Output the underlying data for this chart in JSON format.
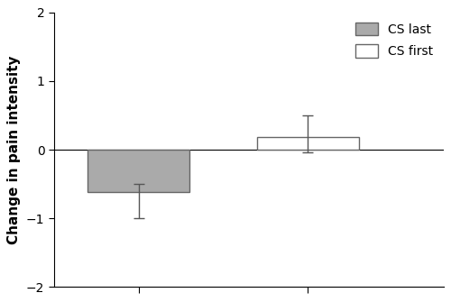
{
  "bar_positions": [
    1,
    2
  ],
  "bar_values": [
    -0.62,
    0.18
  ],
  "bar_colors": [
    "#aaaaaa",
    "#ffffff"
  ],
  "bar_edgecolors": [
    "#666666",
    "#666666"
  ],
  "bar_width": 0.6,
  "cs_last_err_lower": 0.38,
  "cs_last_err_upper": 0.12,
  "cs_first_err_lower": 0.22,
  "cs_first_err_upper": 0.32,
  "ylabel": "Change in pain intensity",
  "ylim": [
    -2,
    2
  ],
  "yticks": [
    -2,
    -1,
    0,
    1,
    2
  ],
  "legend_labels": [
    "CS last",
    "CS first"
  ],
  "legend_colors": [
    "#aaaaaa",
    "#ffffff"
  ],
  "legend_edgecolors": [
    "#666666",
    "#666666"
  ],
  "xlim": [
    0.5,
    2.8
  ],
  "xtick_positions": [
    1,
    2
  ],
  "background_color": "#ffffff",
  "capsize": 4,
  "linewidth": 1.0,
  "errorbar_color": "#555555"
}
